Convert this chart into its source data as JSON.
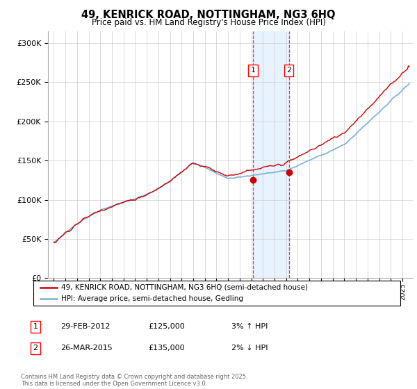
{
  "title": "49, KENRICK ROAD, NOTTINGHAM, NG3 6HQ",
  "subtitle": "Price paid vs. HM Land Registry's House Price Index (HPI)",
  "ylabel_ticks": [
    "£0",
    "£50K",
    "£100K",
    "£150K",
    "£200K",
    "£250K",
    "£300K"
  ],
  "ytick_values": [
    0,
    50000,
    100000,
    150000,
    200000,
    250000,
    300000
  ],
  "ylim": [
    0,
    315000
  ],
  "year_start": 1995,
  "year_end": 2025,
  "sale1_date": 2012.16,
  "sale1_price": 125000,
  "sale1_label": "1",
  "sale2_date": 2015.23,
  "sale2_price": 135000,
  "sale2_label": "2",
  "line_color_red": "#cc0000",
  "line_color_blue": "#7bafd4",
  "highlight_color": "#ddeeff",
  "grid_color": "#cccccc",
  "legend_line1": "49, KENRICK ROAD, NOTTINGHAM, NG3 6HQ (semi-detached house)",
  "legend_line2": "HPI: Average price, semi-detached house, Gedling",
  "sale_rows": [
    {
      "num": "1",
      "date": "29-FEB-2012",
      "price": "£125,000",
      "pct": "3% ↑ HPI"
    },
    {
      "num": "2",
      "date": "26-MAR-2015",
      "price": "£135,000",
      "pct": "2% ↓ HPI"
    }
  ],
  "footnote": "Contains HM Land Registry data © Crown copyright and database right 2025.\nThis data is licensed under the Open Government Licence v3.0."
}
